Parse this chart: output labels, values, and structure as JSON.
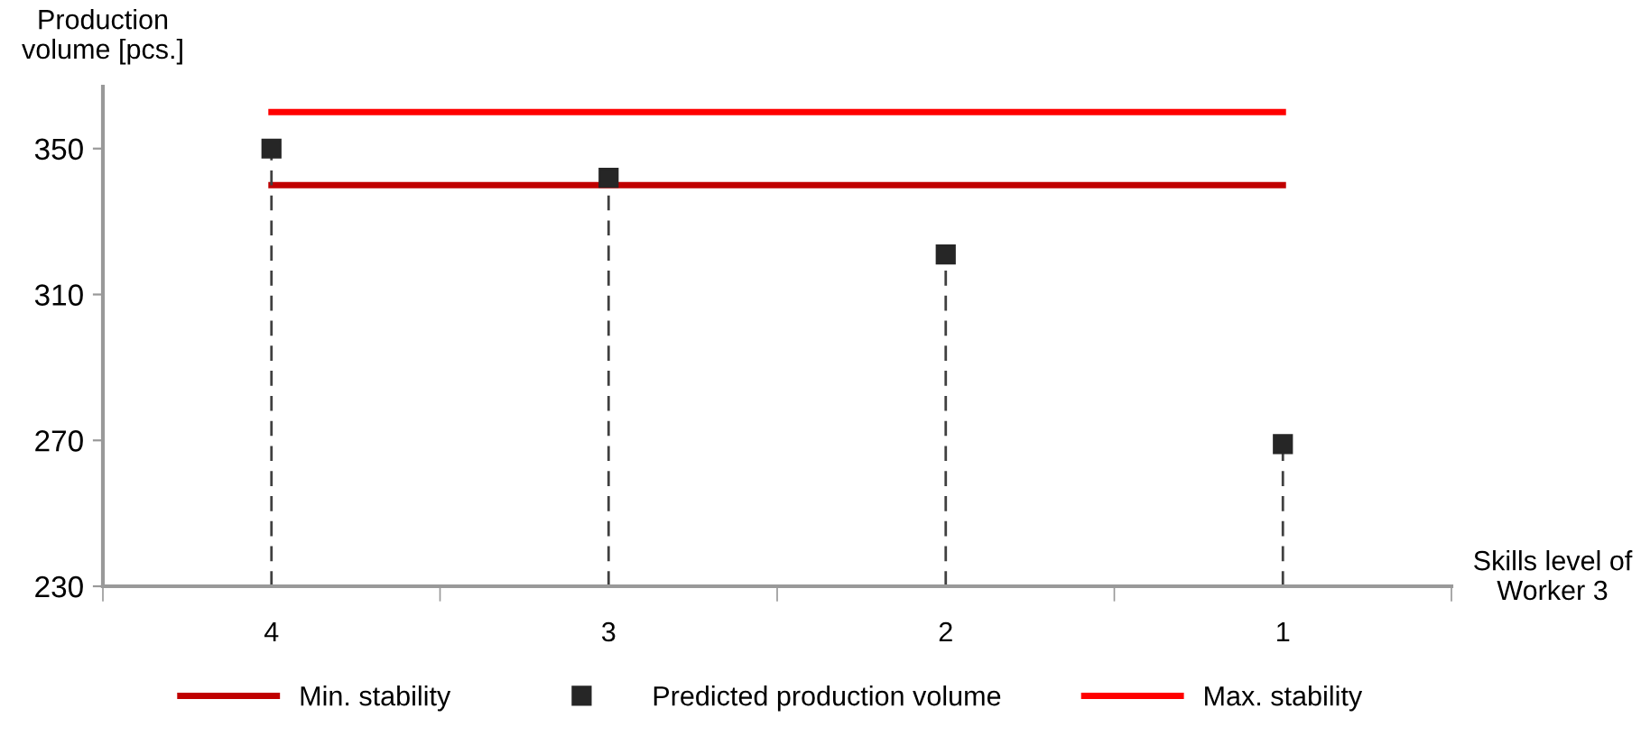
{
  "chart_data": {
    "type": "line",
    "xlabel": "Skills level of\nWorker 3",
    "ylabel": "Production\nvolume [pcs.]",
    "categories": [
      "4",
      "3",
      "2",
      "1"
    ],
    "series": [
      {
        "name": "Min. stability",
        "color": "#c00000",
        "values": [
          340,
          340,
          340,
          340
        ]
      },
      {
        "name": "Predicted production volume",
        "type": "lollipop",
        "color": "#262626",
        "values": [
          350,
          342,
          321,
          269
        ],
        "marker": "square",
        "line_style": "dashed"
      },
      {
        "name": "Max. stability",
        "color": "#ff0000",
        "values": [
          360,
          360,
          360,
          360
        ]
      }
    ],
    "ylim": [
      230,
      367
    ],
    "yticks": [
      230,
      270,
      310,
      350
    ],
    "legend": "bottom"
  }
}
